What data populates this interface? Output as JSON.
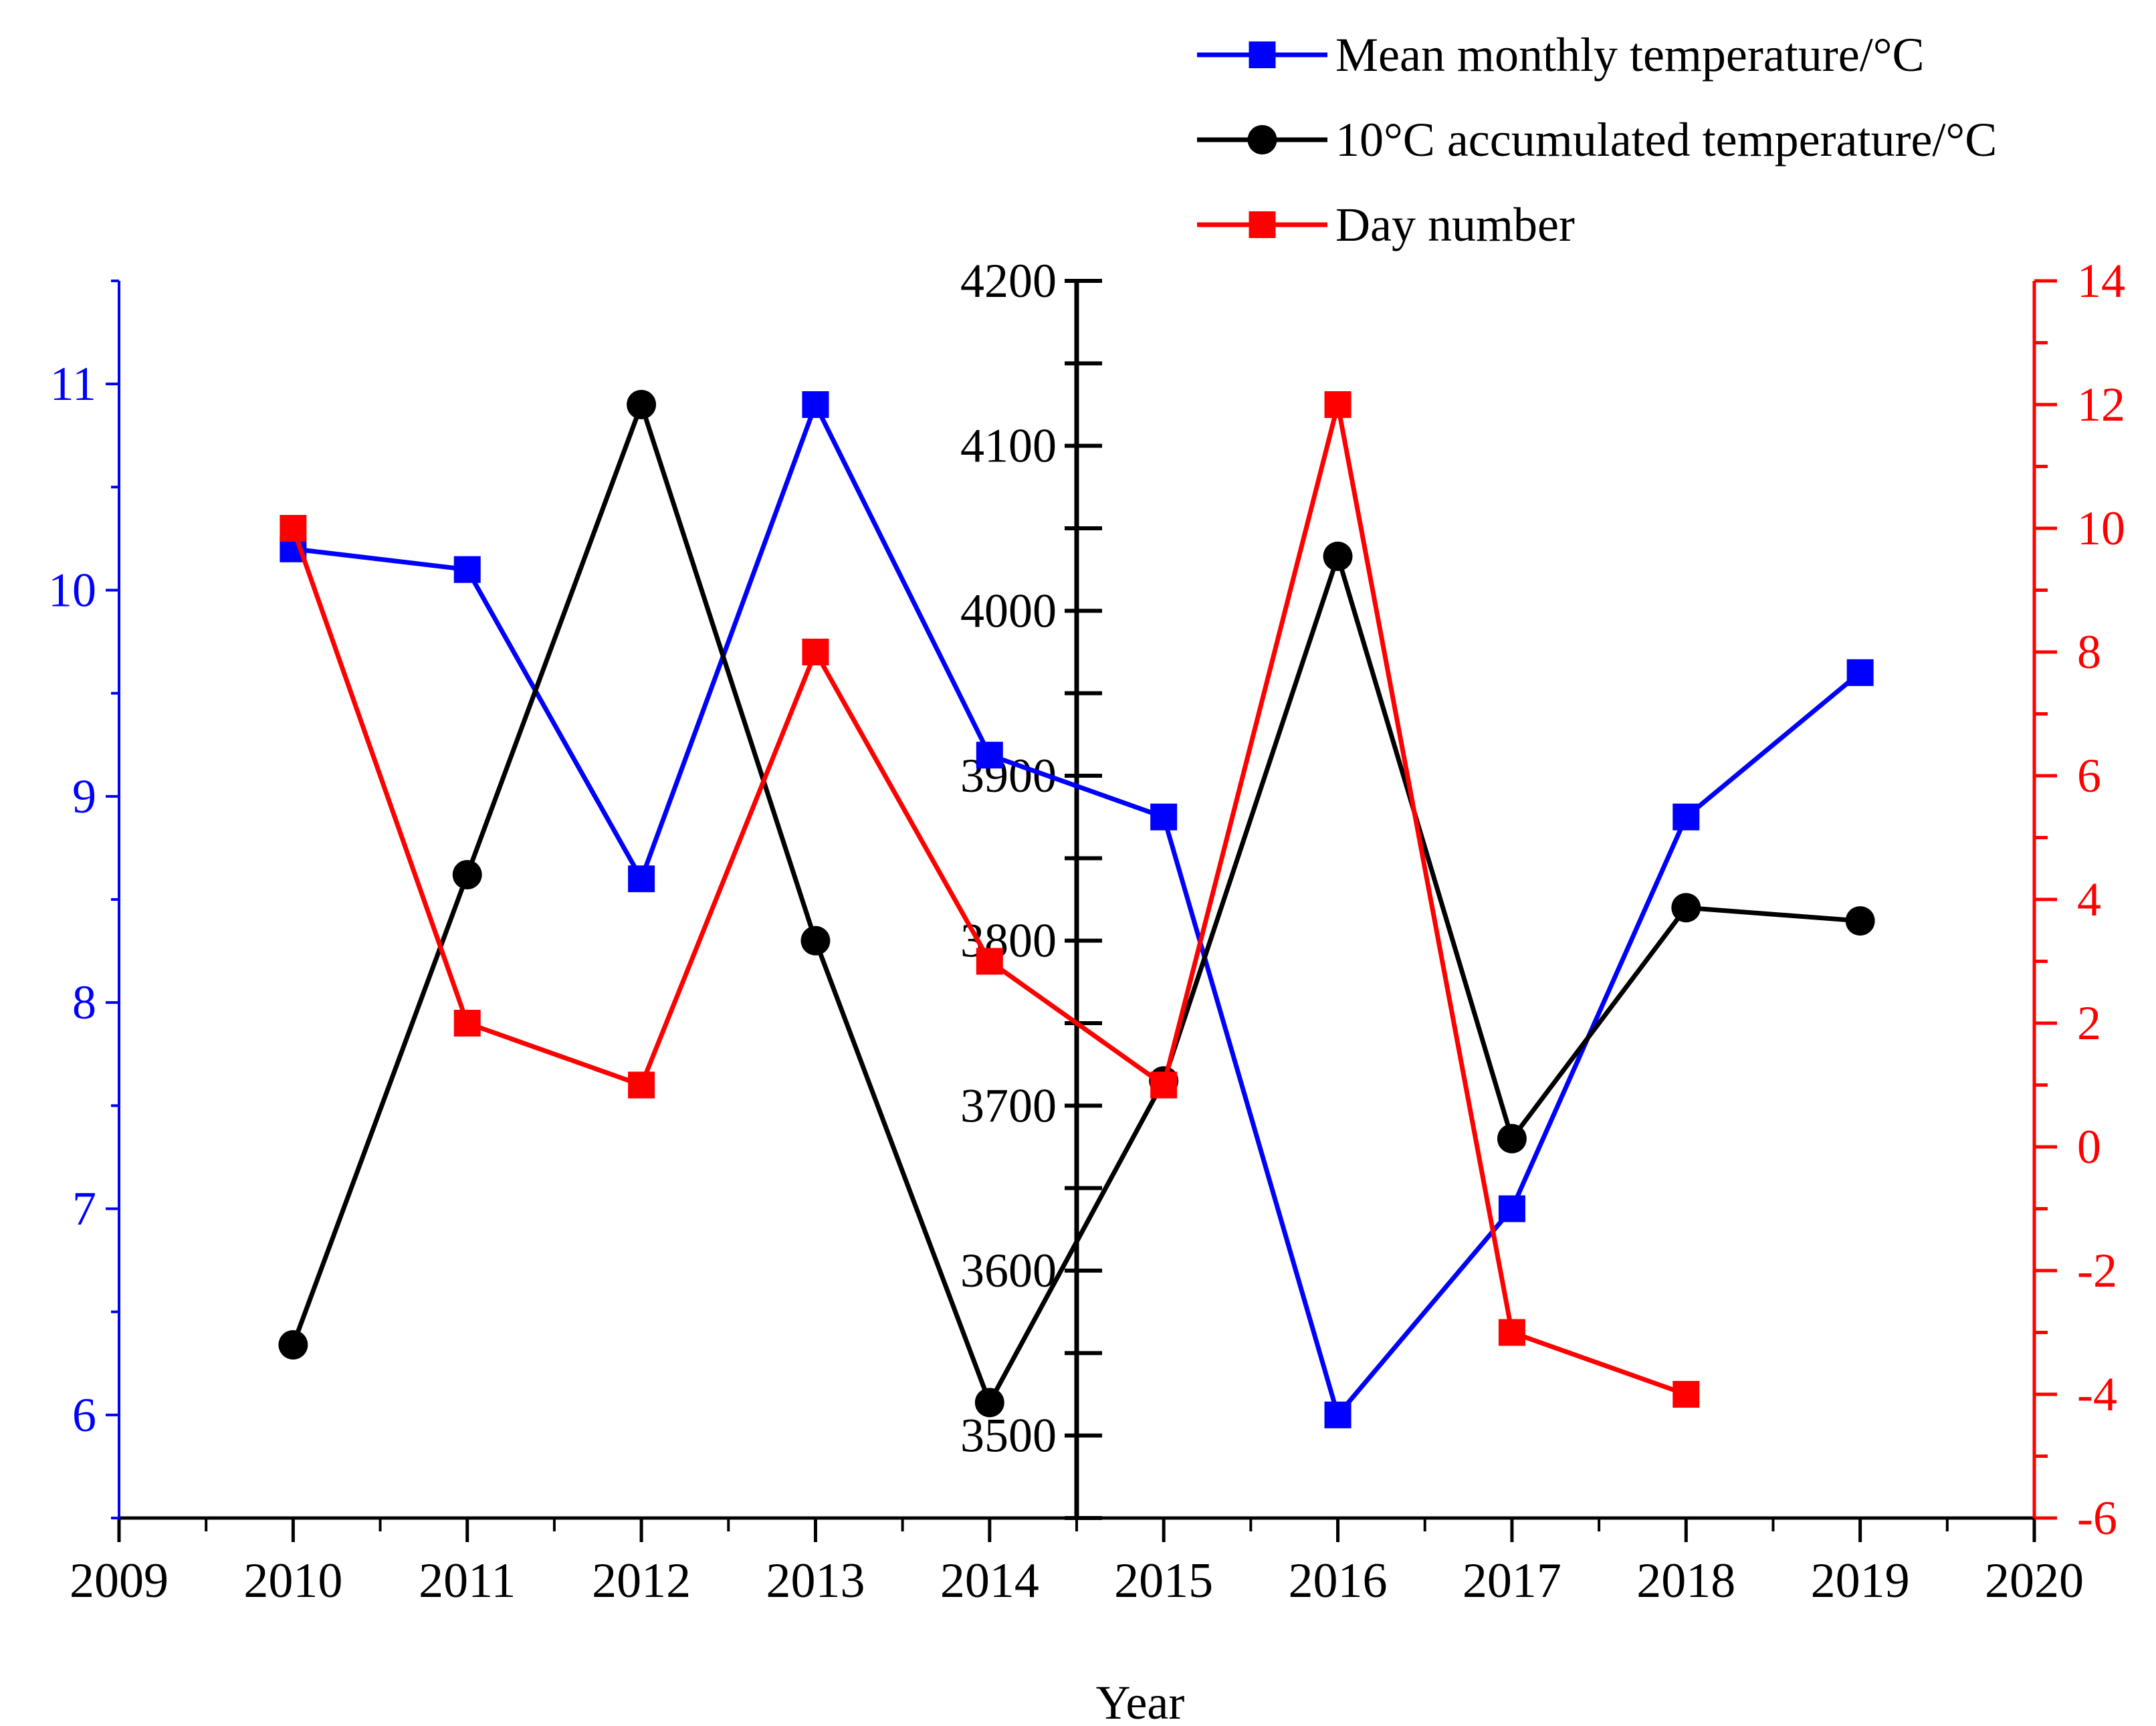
{
  "chart_data": {
    "type": "line",
    "title": "",
    "xlabel": "Year",
    "x_ticks": [
      2009,
      2010,
      2011,
      2012,
      2013,
      2014,
      2015,
      2016,
      2017,
      2018,
      2019,
      2020
    ],
    "xlim": [
      2009,
      2020
    ],
    "axes": {
      "left": {
        "color": "#0000ff",
        "ylim": [
          5.5,
          11.5
        ],
        "ticks": [
          6,
          7,
          8,
          9,
          10,
          11
        ]
      },
      "middle": {
        "color": "#000000",
        "ylim": [
          3450,
          4200
        ],
        "ticks": [
          3500,
          3600,
          3700,
          3800,
          3900,
          4000,
          4100,
          4200
        ]
      },
      "right": {
        "color": "#ff0000",
        "ylim": [
          -6,
          14
        ],
        "ticks": [
          -6,
          -4,
          -2,
          0,
          2,
          4,
          6,
          8,
          10,
          12,
          14
        ]
      }
    },
    "series": [
      {
        "name": "Mean monthly temperature/°C",
        "axis": "left",
        "color": "#0000ff",
        "marker": "square",
        "x": [
          2010,
          2011,
          2012,
          2013,
          2014,
          2015,
          2016,
          2017,
          2018,
          2019
        ],
        "values": [
          10.2,
          10.1,
          8.6,
          10.9,
          9.2,
          8.9,
          6.0,
          7.0,
          8.9,
          9.6
        ]
      },
      {
        "name": "10°C accumulated temperature/°C",
        "axis": "middle",
        "color": "#000000",
        "marker": "circle",
        "x": [
          2010,
          2011,
          2012,
          2013,
          2014,
          2015,
          2016,
          2017,
          2018,
          2019
        ],
        "values": [
          3555,
          3840,
          4125,
          3800,
          3520,
          3715,
          4033,
          3680,
          3820,
          3812
        ]
      },
      {
        "name": "Day number",
        "axis": "right",
        "color": "#ff0000",
        "marker": "square",
        "x": [
          2010,
          2011,
          2012,
          2013,
          2014,
          2015,
          2016,
          2017,
          2018
        ],
        "values": [
          10,
          2,
          1,
          8,
          3,
          1,
          12,
          -3,
          -4
        ]
      }
    ],
    "legend_position": "top-right"
  }
}
